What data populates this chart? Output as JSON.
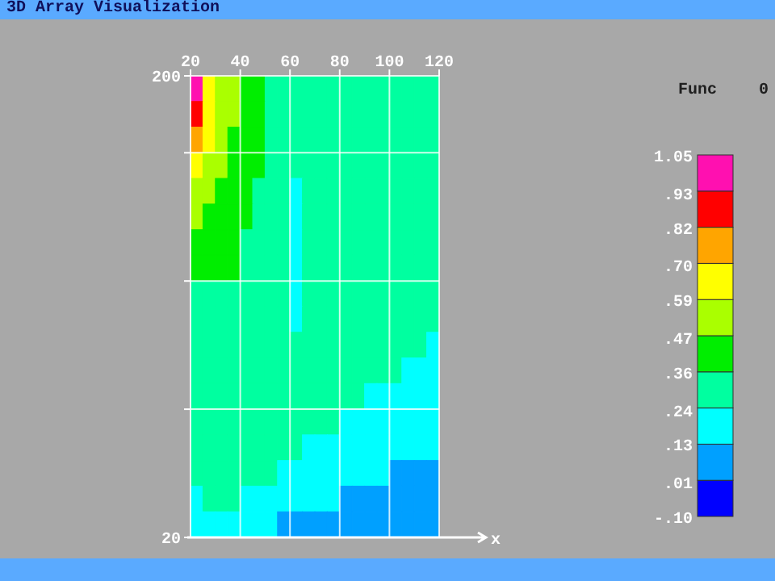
{
  "chart_data": {
    "type": "heatmap",
    "title": "3D Array Visualization",
    "xlabel": "x",
    "clabel": "Func",
    "annotations": [
      "0"
    ],
    "xlim": [
      20,
      120
    ],
    "xticks": [
      20,
      40,
      60,
      80,
      100,
      120
    ],
    "ylim": [
      20,
      200
    ],
    "yticks": [
      {
        "value": 20,
        "label": "20"
      },
      {
        "value": 70,
        "label": null
      },
      {
        "value": 120,
        "label": null
      },
      {
        "value": 170,
        "label": null
      },
      {
        "value": 200,
        "label": "200"
      }
    ],
    "grid": true,
    "clim": [
      -0.1,
      1.05
    ],
    "cticks": [
      {
        "value": -0.1,
        "label": "-.10"
      },
      {
        "value": 0.01,
        "label": ".01"
      },
      {
        "value": 0.13,
        "label": ".13"
      },
      {
        "value": 0.24,
        "label": ".24"
      },
      {
        "value": 0.36,
        "label": ".36"
      },
      {
        "value": 0.47,
        "label": ".47"
      },
      {
        "value": 0.59,
        "label": ".59"
      },
      {
        "value": 0.7,
        "label": ".70"
      },
      {
        "value": 0.82,
        "label": ".82"
      },
      {
        "value": 0.93,
        "label": ".93"
      },
      {
        "value": 1.05,
        "label": "1.05"
      }
    ],
    "colors": [
      "#0000ff",
      "#00a0ff",
      "#00ffff",
      "#00ffa0",
      "#00ee00",
      "#aaff00",
      "#ffff00",
      "#ffa500",
      "#ff0000",
      "#ff10b0"
    ],
    "cells": [
      [
        1.0,
        0.65,
        0.53,
        0.53,
        0.42,
        0.42,
        0.3,
        0.3,
        0.3,
        0.3,
        0.3,
        0.3,
        0.3,
        0.3,
        0.3,
        0.3,
        0.3,
        0.3,
        0.3,
        0.3
      ],
      [
        0.88,
        0.65,
        0.53,
        0.53,
        0.42,
        0.42,
        0.3,
        0.3,
        0.3,
        0.3,
        0.3,
        0.3,
        0.3,
        0.3,
        0.3,
        0.3,
        0.3,
        0.3,
        0.3,
        0.3
      ],
      [
        0.76,
        0.65,
        0.53,
        0.42,
        0.42,
        0.42,
        0.3,
        0.3,
        0.3,
        0.3,
        0.3,
        0.3,
        0.3,
        0.3,
        0.3,
        0.3,
        0.3,
        0.3,
        0.3,
        0.3
      ],
      [
        0.65,
        0.53,
        0.53,
        0.42,
        0.42,
        0.42,
        0.3,
        0.3,
        0.3,
        0.3,
        0.3,
        0.3,
        0.3,
        0.3,
        0.3,
        0.3,
        0.3,
        0.3,
        0.3,
        0.3
      ],
      [
        0.53,
        0.53,
        0.42,
        0.42,
        0.42,
        0.3,
        0.3,
        0.3,
        0.18,
        0.3,
        0.3,
        0.3,
        0.3,
        0.3,
        0.3,
        0.3,
        0.3,
        0.3,
        0.3,
        0.3
      ],
      [
        0.53,
        0.42,
        0.42,
        0.42,
        0.42,
        0.3,
        0.3,
        0.3,
        0.18,
        0.3,
        0.3,
        0.3,
        0.3,
        0.3,
        0.3,
        0.3,
        0.3,
        0.3,
        0.3,
        0.3
      ],
      [
        0.42,
        0.42,
        0.42,
        0.42,
        0.3,
        0.3,
        0.3,
        0.3,
        0.18,
        0.3,
        0.3,
        0.3,
        0.3,
        0.3,
        0.3,
        0.3,
        0.3,
        0.3,
        0.3,
        0.3
      ],
      [
        0.42,
        0.42,
        0.42,
        0.42,
        0.3,
        0.3,
        0.3,
        0.3,
        0.18,
        0.3,
        0.3,
        0.3,
        0.3,
        0.3,
        0.3,
        0.3,
        0.3,
        0.3,
        0.3,
        0.3
      ],
      [
        0.3,
        0.3,
        0.3,
        0.3,
        0.3,
        0.3,
        0.3,
        0.3,
        0.18,
        0.3,
        0.3,
        0.3,
        0.3,
        0.3,
        0.3,
        0.3,
        0.3,
        0.3,
        0.3,
        0.3
      ],
      [
        0.3,
        0.3,
        0.3,
        0.3,
        0.3,
        0.3,
        0.3,
        0.3,
        0.18,
        0.3,
        0.3,
        0.3,
        0.3,
        0.3,
        0.3,
        0.3,
        0.3,
        0.3,
        0.3,
        0.3
      ],
      [
        0.3,
        0.3,
        0.3,
        0.3,
        0.3,
        0.3,
        0.3,
        0.3,
        0.3,
        0.3,
        0.3,
        0.3,
        0.3,
        0.3,
        0.3,
        0.3,
        0.3,
        0.3,
        0.3,
        0.18
      ],
      [
        0.3,
        0.3,
        0.3,
        0.3,
        0.3,
        0.3,
        0.3,
        0.3,
        0.3,
        0.3,
        0.3,
        0.3,
        0.3,
        0.3,
        0.3,
        0.3,
        0.3,
        0.18,
        0.18,
        0.18
      ],
      [
        0.3,
        0.3,
        0.3,
        0.3,
        0.3,
        0.3,
        0.3,
        0.3,
        0.3,
        0.3,
        0.3,
        0.3,
        0.3,
        0.3,
        0.18,
        0.18,
        0.18,
        0.18,
        0.18,
        0.18
      ],
      [
        0.3,
        0.3,
        0.3,
        0.3,
        0.3,
        0.3,
        0.3,
        0.3,
        0.3,
        0.3,
        0.3,
        0.3,
        0.18,
        0.18,
        0.18,
        0.18,
        0.18,
        0.18,
        0.18,
        0.18
      ],
      [
        0.3,
        0.3,
        0.3,
        0.3,
        0.3,
        0.3,
        0.3,
        0.3,
        0.3,
        0.18,
        0.18,
        0.18,
        0.18,
        0.18,
        0.18,
        0.18,
        0.18,
        0.18,
        0.18,
        0.18
      ],
      [
        0.3,
        0.3,
        0.3,
        0.3,
        0.3,
        0.3,
        0.3,
        0.18,
        0.18,
        0.18,
        0.18,
        0.18,
        0.18,
        0.18,
        0.18,
        0.18,
        0.07,
        0.07,
        0.07,
        0.07
      ],
      [
        0.18,
        0.3,
        0.3,
        0.3,
        0.18,
        0.18,
        0.18,
        0.18,
        0.18,
        0.18,
        0.18,
        0.18,
        0.07,
        0.07,
        0.07,
        0.07,
        0.07,
        0.07,
        0.07,
        0.07
      ],
      [
        0.18,
        0.18,
        0.18,
        0.18,
        0.18,
        0.18,
        0.18,
        0.07,
        0.07,
        0.07,
        0.07,
        0.07,
        0.07,
        0.07,
        0.07,
        0.07,
        0.07,
        0.07,
        0.07,
        0.07
      ]
    ]
  }
}
